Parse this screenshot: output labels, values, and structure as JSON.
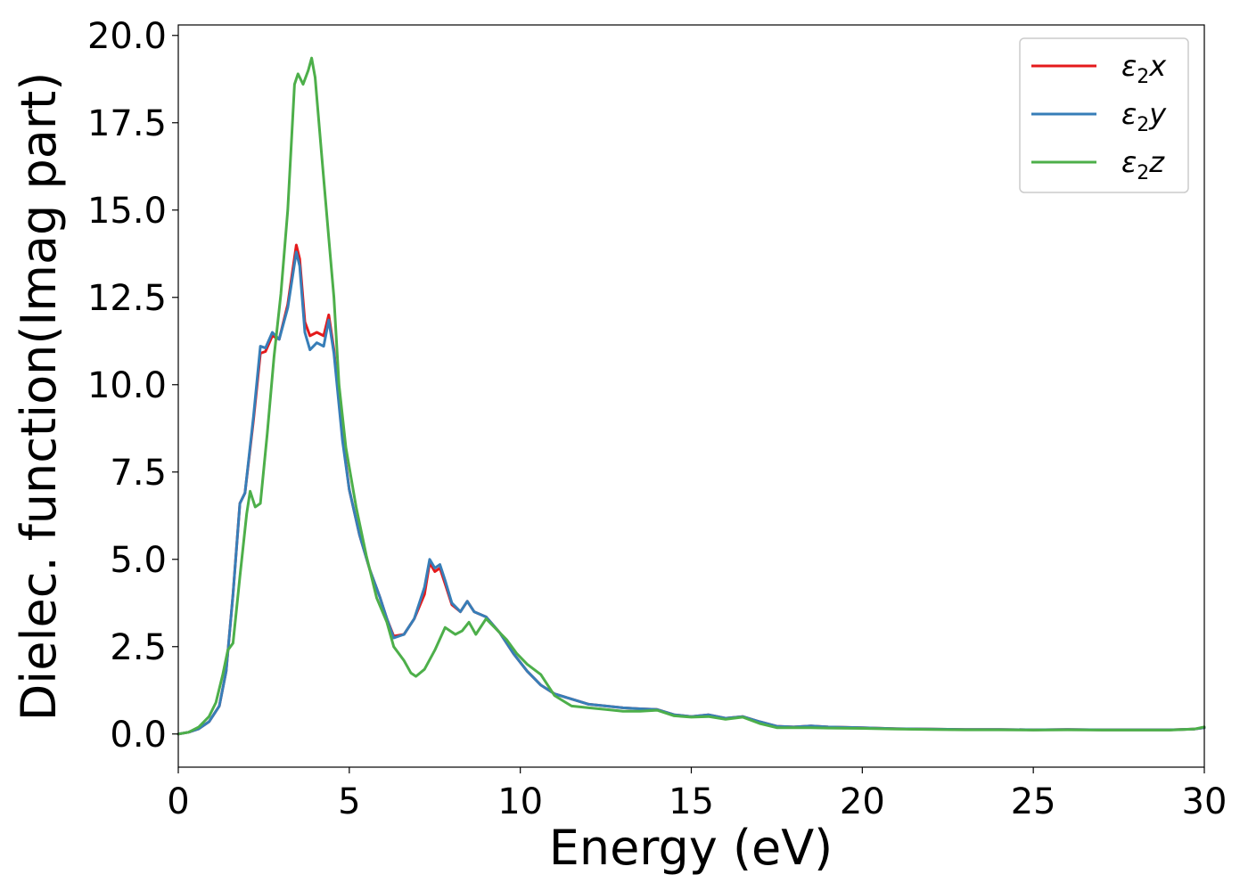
{
  "chart_data": {
    "type": "line",
    "xlabel": "Energy (eV)",
    "ylabel": "Dielec. function(Imag part)",
    "xlim": [
      0,
      30
    ],
    "ylim": [
      -0.95,
      20.3
    ],
    "xticks": [
      0,
      5,
      10,
      15,
      20,
      25,
      30
    ],
    "yticks": [
      0.0,
      2.5,
      5.0,
      7.5,
      10.0,
      12.5,
      15.0,
      17.5,
      20.0
    ],
    "xtick_labels": [
      "0",
      "5",
      "10",
      "15",
      "20",
      "25",
      "30"
    ],
    "ytick_labels": [
      "0.0",
      "2.5",
      "5.0",
      "7.5",
      "10.0",
      "12.5",
      "15.0",
      "17.5",
      "20.0"
    ],
    "grid": false,
    "legend_position": "top-right",
    "series": [
      {
        "name": "ε₂x",
        "legend_main": "ε",
        "legend_sub": "2",
        "legend_tail": "x",
        "color": "#e41a1c",
        "points": [
          [
            0,
            0.0
          ],
          [
            0.3,
            0.05
          ],
          [
            0.6,
            0.15
          ],
          [
            0.9,
            0.35
          ],
          [
            1.2,
            0.8
          ],
          [
            1.4,
            1.8
          ],
          [
            1.6,
            4.0
          ],
          [
            1.8,
            6.6
          ],
          [
            1.95,
            6.9
          ],
          [
            2.2,
            9.0
          ],
          [
            2.4,
            10.9
          ],
          [
            2.55,
            10.95
          ],
          [
            2.75,
            11.4
          ],
          [
            2.95,
            11.3
          ],
          [
            3.2,
            12.3
          ],
          [
            3.45,
            14.0
          ],
          [
            3.55,
            13.6
          ],
          [
            3.7,
            11.8
          ],
          [
            3.85,
            11.4
          ],
          [
            4.05,
            11.5
          ],
          [
            4.25,
            11.4
          ],
          [
            4.4,
            12.0
          ],
          [
            4.55,
            11.0
          ],
          [
            4.8,
            8.5
          ],
          [
            5.0,
            7.0
          ],
          [
            5.3,
            5.7
          ],
          [
            5.6,
            4.7
          ],
          [
            5.9,
            3.9
          ],
          [
            6.1,
            3.3
          ],
          [
            6.3,
            2.8
          ],
          [
            6.6,
            2.85
          ],
          [
            6.9,
            3.3
          ],
          [
            7.2,
            4.0
          ],
          [
            7.35,
            4.9
          ],
          [
            7.5,
            4.65
          ],
          [
            7.65,
            4.75
          ],
          [
            7.8,
            4.3
          ],
          [
            8.0,
            3.7
          ],
          [
            8.25,
            3.5
          ],
          [
            8.45,
            3.8
          ],
          [
            8.65,
            3.5
          ],
          [
            9.0,
            3.35
          ],
          [
            9.4,
            2.9
          ],
          [
            9.8,
            2.3
          ],
          [
            10.2,
            1.8
          ],
          [
            10.6,
            1.4
          ],
          [
            11.0,
            1.15
          ],
          [
            11.5,
            1.0
          ],
          [
            12.0,
            0.85
          ],
          [
            12.5,
            0.8
          ],
          [
            13.0,
            0.75
          ],
          [
            13.5,
            0.72
          ],
          [
            14.0,
            0.7
          ],
          [
            14.5,
            0.55
          ],
          [
            15.0,
            0.5
          ],
          [
            15.5,
            0.55
          ],
          [
            16.0,
            0.45
          ],
          [
            16.5,
            0.5
          ],
          [
            17.0,
            0.35
          ],
          [
            17.5,
            0.22
          ],
          [
            18.0,
            0.2
          ],
          [
            18.5,
            0.23
          ],
          [
            19.0,
            0.2
          ],
          [
            20.0,
            0.18
          ],
          [
            21.0,
            0.15
          ],
          [
            22.0,
            0.14
          ],
          [
            23.0,
            0.13
          ],
          [
            24.0,
            0.13
          ],
          [
            25.0,
            0.12
          ],
          [
            26.0,
            0.13
          ],
          [
            27.0,
            0.12
          ],
          [
            28.0,
            0.12
          ],
          [
            29.0,
            0.12
          ],
          [
            29.7,
            0.14
          ],
          [
            30.0,
            0.18
          ]
        ]
      },
      {
        "name": "ε₂y",
        "legend_main": "ε",
        "legend_sub": "2",
        "legend_tail": "y",
        "color": "#377eb8",
        "points": [
          [
            0,
            0.0
          ],
          [
            0.3,
            0.05
          ],
          [
            0.6,
            0.15
          ],
          [
            0.9,
            0.35
          ],
          [
            1.2,
            0.8
          ],
          [
            1.4,
            1.8
          ],
          [
            1.6,
            4.0
          ],
          [
            1.8,
            6.6
          ],
          [
            1.95,
            6.9
          ],
          [
            2.2,
            9.1
          ],
          [
            2.4,
            11.1
          ],
          [
            2.55,
            11.05
          ],
          [
            2.75,
            11.5
          ],
          [
            2.95,
            11.3
          ],
          [
            3.2,
            12.2
          ],
          [
            3.45,
            13.8
          ],
          [
            3.55,
            13.4
          ],
          [
            3.7,
            11.5
          ],
          [
            3.85,
            11.0
          ],
          [
            4.05,
            11.2
          ],
          [
            4.25,
            11.1
          ],
          [
            4.4,
            11.85
          ],
          [
            4.55,
            10.9
          ],
          [
            4.8,
            8.4
          ],
          [
            5.0,
            7.0
          ],
          [
            5.3,
            5.7
          ],
          [
            5.6,
            4.7
          ],
          [
            5.9,
            3.9
          ],
          [
            6.1,
            3.3
          ],
          [
            6.3,
            2.75
          ],
          [
            6.6,
            2.85
          ],
          [
            6.9,
            3.3
          ],
          [
            7.2,
            4.2
          ],
          [
            7.35,
            5.0
          ],
          [
            7.5,
            4.75
          ],
          [
            7.65,
            4.85
          ],
          [
            7.8,
            4.4
          ],
          [
            8.0,
            3.75
          ],
          [
            8.25,
            3.5
          ],
          [
            8.45,
            3.8
          ],
          [
            8.65,
            3.5
          ],
          [
            9.0,
            3.35
          ],
          [
            9.4,
            2.9
          ],
          [
            9.8,
            2.3
          ],
          [
            10.2,
            1.8
          ],
          [
            10.6,
            1.4
          ],
          [
            11.0,
            1.15
          ],
          [
            11.5,
            1.0
          ],
          [
            12.0,
            0.85
          ],
          [
            12.5,
            0.8
          ],
          [
            13.0,
            0.75
          ],
          [
            13.5,
            0.72
          ],
          [
            14.0,
            0.7
          ],
          [
            14.5,
            0.55
          ],
          [
            15.0,
            0.5
          ],
          [
            15.5,
            0.55
          ],
          [
            16.0,
            0.45
          ],
          [
            16.5,
            0.5
          ],
          [
            17.0,
            0.35
          ],
          [
            17.5,
            0.22
          ],
          [
            18.0,
            0.2
          ],
          [
            18.5,
            0.23
          ],
          [
            19.0,
            0.2
          ],
          [
            20.0,
            0.18
          ],
          [
            21.0,
            0.15
          ],
          [
            22.0,
            0.14
          ],
          [
            23.0,
            0.13
          ],
          [
            24.0,
            0.13
          ],
          [
            25.0,
            0.12
          ],
          [
            26.0,
            0.13
          ],
          [
            27.0,
            0.12
          ],
          [
            28.0,
            0.12
          ],
          [
            29.0,
            0.12
          ],
          [
            29.7,
            0.14
          ],
          [
            30.0,
            0.18
          ]
        ]
      },
      {
        "name": "ε₂z",
        "legend_main": "ε",
        "legend_sub": "2",
        "legend_tail": "z",
        "color": "#4daf4a",
        "points": [
          [
            0,
            0.0
          ],
          [
            0.3,
            0.05
          ],
          [
            0.6,
            0.2
          ],
          [
            0.9,
            0.5
          ],
          [
            1.1,
            0.9
          ],
          [
            1.3,
            1.7
          ],
          [
            1.45,
            2.4
          ],
          [
            1.6,
            2.6
          ],
          [
            1.8,
            4.5
          ],
          [
            2.0,
            6.3
          ],
          [
            2.1,
            6.95
          ],
          [
            2.25,
            6.5
          ],
          [
            2.4,
            6.6
          ],
          [
            2.6,
            8.6
          ],
          [
            2.8,
            10.8
          ],
          [
            3.0,
            12.6
          ],
          [
            3.2,
            15.0
          ],
          [
            3.4,
            18.6
          ],
          [
            3.5,
            18.9
          ],
          [
            3.65,
            18.6
          ],
          [
            3.8,
            19.0
          ],
          [
            3.9,
            19.35
          ],
          [
            4.0,
            18.8
          ],
          [
            4.2,
            16.5
          ],
          [
            4.4,
            14.2
          ],
          [
            4.55,
            12.5
          ],
          [
            4.7,
            10.0
          ],
          [
            4.9,
            8.2
          ],
          [
            5.2,
            6.5
          ],
          [
            5.5,
            5.1
          ],
          [
            5.8,
            3.9
          ],
          [
            6.1,
            3.2
          ],
          [
            6.3,
            2.5
          ],
          [
            6.6,
            2.1
          ],
          [
            6.8,
            1.75
          ],
          [
            6.95,
            1.65
          ],
          [
            7.2,
            1.85
          ],
          [
            7.5,
            2.4
          ],
          [
            7.8,
            3.05
          ],
          [
            8.1,
            2.85
          ],
          [
            8.3,
            2.95
          ],
          [
            8.5,
            3.2
          ],
          [
            8.7,
            2.85
          ],
          [
            9.0,
            3.3
          ],
          [
            9.3,
            3.0
          ],
          [
            9.6,
            2.7
          ],
          [
            9.9,
            2.3
          ],
          [
            10.2,
            2.0
          ],
          [
            10.6,
            1.7
          ],
          [
            11.0,
            1.1
          ],
          [
            11.5,
            0.8
          ],
          [
            12.0,
            0.75
          ],
          [
            12.5,
            0.7
          ],
          [
            13.0,
            0.65
          ],
          [
            13.5,
            0.65
          ],
          [
            14.0,
            0.68
          ],
          [
            14.5,
            0.52
          ],
          [
            15.0,
            0.48
          ],
          [
            15.5,
            0.5
          ],
          [
            16.0,
            0.42
          ],
          [
            16.5,
            0.48
          ],
          [
            17.0,
            0.3
          ],
          [
            17.5,
            0.18
          ],
          [
            18.0,
            0.18
          ],
          [
            18.5,
            0.18
          ],
          [
            19.0,
            0.17
          ],
          [
            20.0,
            0.16
          ],
          [
            21.0,
            0.14
          ],
          [
            22.0,
            0.13
          ],
          [
            23.0,
            0.12
          ],
          [
            24.0,
            0.12
          ],
          [
            25.0,
            0.11
          ],
          [
            26.0,
            0.12
          ],
          [
            27.0,
            0.11
          ],
          [
            28.0,
            0.11
          ],
          [
            29.0,
            0.11
          ],
          [
            29.7,
            0.14
          ],
          [
            30.0,
            0.2
          ]
        ]
      }
    ]
  }
}
